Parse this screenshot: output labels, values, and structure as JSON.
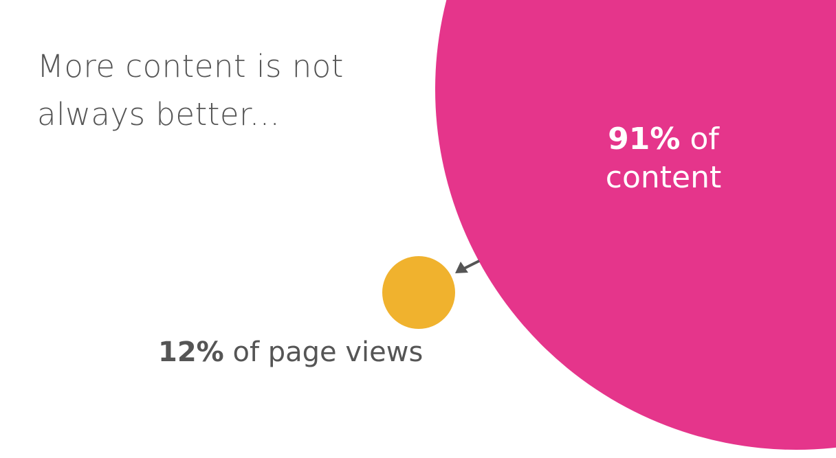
{
  "headline": {
    "line1": "More content is not",
    "line2": "always better..."
  },
  "large_circle": {
    "percent": "91%",
    "suffix_line1": "of",
    "suffix_line2": "content",
    "color": "#E5358B"
  },
  "small_circle": {
    "percent": "12%",
    "suffix": "of page views",
    "color": "#F0B22E"
  },
  "arrow_color": "#555555",
  "text_color": "#555555"
}
